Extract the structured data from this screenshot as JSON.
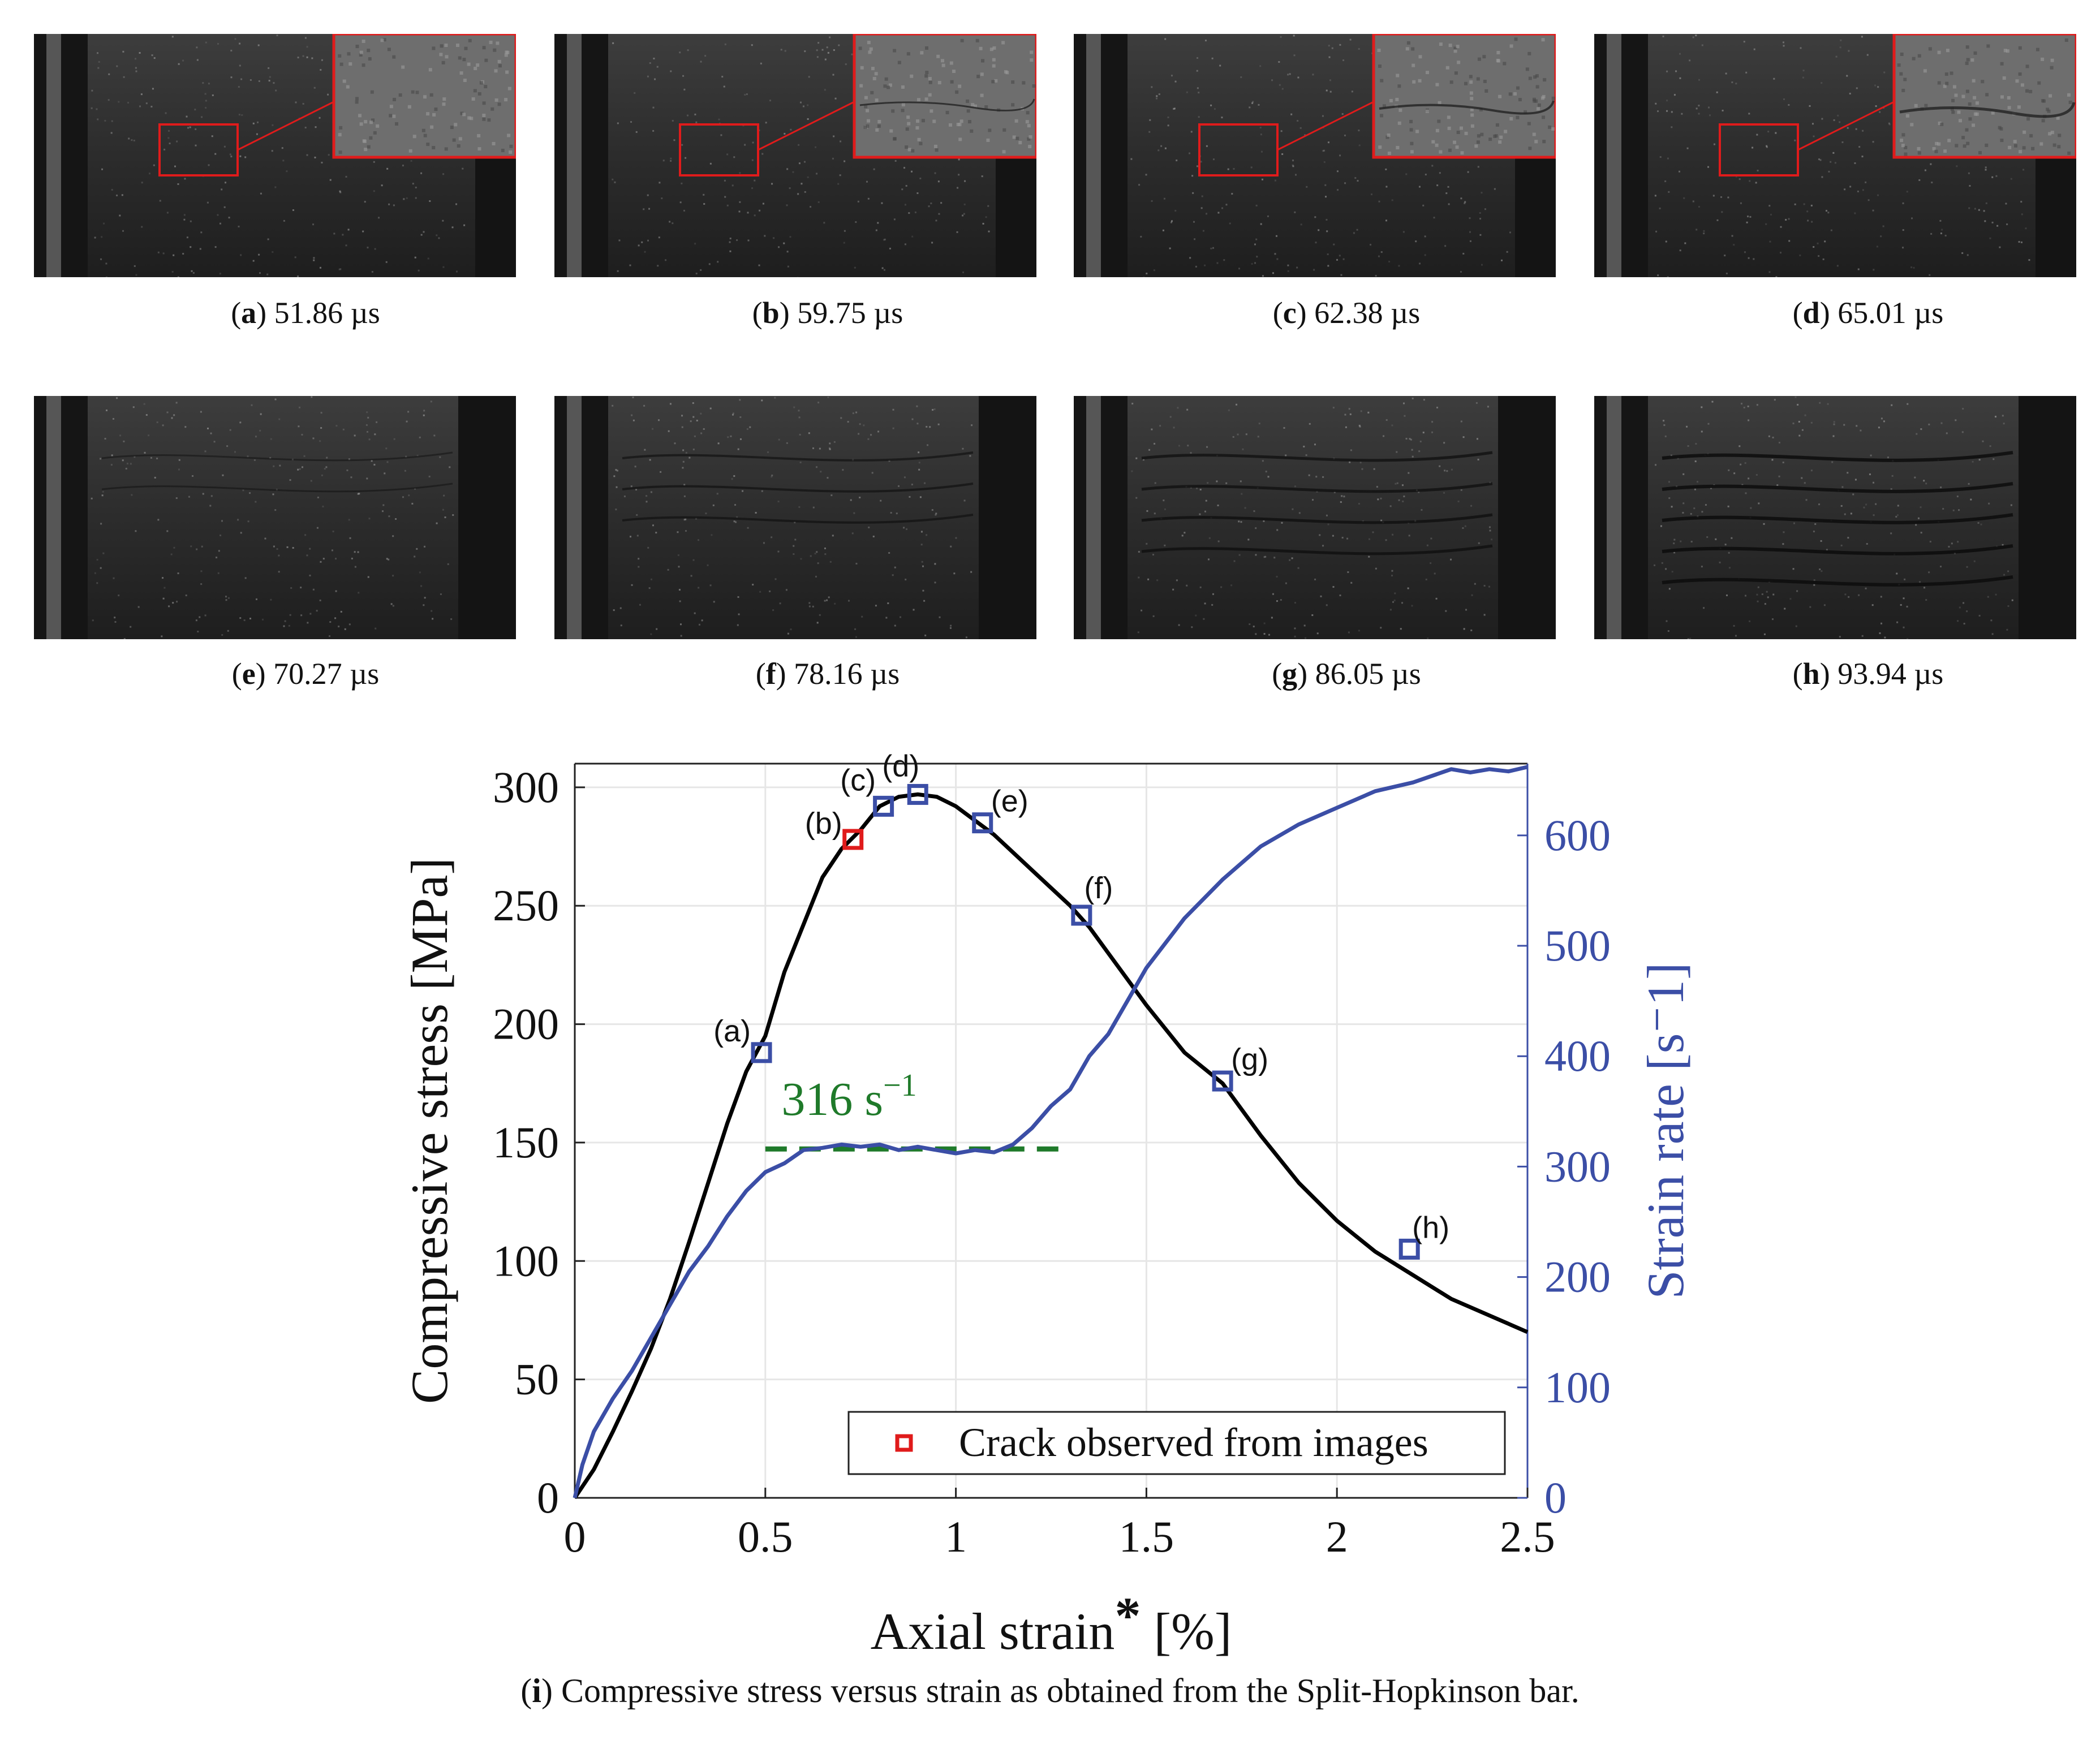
{
  "panels": [
    {
      "letter": "a",
      "time": "51.86 µs"
    },
    {
      "letter": "b",
      "time": "59.75 µs"
    },
    {
      "letter": "c",
      "time": "62.38 µs"
    },
    {
      "letter": "d",
      "time": "65.01 µs"
    },
    {
      "letter": "e",
      "time": "70.27 µs"
    },
    {
      "letter": "f",
      "time": "78.16 µs"
    },
    {
      "letter": "g",
      "time": "86.05 µs"
    },
    {
      "letter": "h",
      "time": "93.94 µs"
    }
  ],
  "figure_caption": {
    "letter": "i",
    "text": "Compressive stress versus strain as obtained from the Split-Hopkinson bar."
  },
  "colors": {
    "stress": "#000000",
    "rate": "#3b4ea6",
    "highlight": "#e01b1b",
    "plateau": "#1f7a2a",
    "grid": "#e6e6e6"
  },
  "chart_data": {
    "type": "line",
    "xlabel_main": "Axial strain",
    "xlabel_star": "*",
    "xlabel_unit": "[%]",
    "ylabel": "Compressive stress [MPa]",
    "y2label": "Strain rate [s⁻1]",
    "xlim": [
      0,
      2.5
    ],
    "ylim": [
      0,
      310
    ],
    "y2lim": [
      0,
      665
    ],
    "xticks": [
      0,
      0.5,
      1,
      1.5,
      2,
      2.5
    ],
    "xtick_labels": [
      "0",
      "0.5",
      "1",
      "1.5",
      "2",
      "2.5"
    ],
    "yticks": [
      0,
      50,
      100,
      150,
      200,
      250,
      300
    ],
    "ytick_labels": [
      "0",
      "50",
      "100",
      "150",
      "200",
      "250",
      "300"
    ],
    "y2ticks": [
      0,
      100,
      200,
      300,
      400,
      500,
      600
    ],
    "y2tick_labels": [
      "0",
      "100",
      "200",
      "300",
      "400",
      "500",
      "600"
    ],
    "grid": true,
    "series": [
      {
        "name": "Compressive stress",
        "axis": "left",
        "x": [
          0,
          0.05,
          0.1,
          0.15,
          0.2,
          0.25,
          0.3,
          0.35,
          0.4,
          0.45,
          0.5,
          0.55,
          0.6,
          0.65,
          0.7,
          0.75,
          0.8,
          0.85,
          0.9,
          0.95,
          1.0,
          1.1,
          1.2,
          1.3,
          1.35,
          1.4,
          1.5,
          1.6,
          1.7,
          1.8,
          1.9,
          2.0,
          2.1,
          2.2,
          2.3,
          2.4,
          2.5
        ],
        "values": [
          0,
          12,
          28,
          45,
          63,
          84,
          108,
          133,
          158,
          180,
          195,
          222,
          242,
          262,
          274,
          282,
          292,
          296,
          297,
          296,
          292,
          280,
          265,
          250,
          241,
          230,
          208,
          188,
          175,
          153,
          133,
          117,
          104,
          94,
          84,
          77,
          70
        ]
      },
      {
        "name": "Strain rate",
        "axis": "right",
        "x": [
          0,
          0.02,
          0.05,
          0.1,
          0.15,
          0.2,
          0.25,
          0.3,
          0.35,
          0.4,
          0.45,
          0.5,
          0.55,
          0.6,
          0.65,
          0.7,
          0.75,
          0.8,
          0.85,
          0.9,
          0.95,
          1.0,
          1.05,
          1.1,
          1.15,
          1.2,
          1.25,
          1.3,
          1.35,
          1.4,
          1.45,
          1.5,
          1.6,
          1.7,
          1.8,
          1.9,
          2.0,
          2.1,
          2.2,
          2.3,
          2.35,
          2.4,
          2.45,
          2.5
        ],
        "values": [
          0,
          30,
          60,
          90,
          115,
          145,
          175,
          205,
          228,
          255,
          278,
          295,
          303,
          315,
          317,
          320,
          318,
          320,
          315,
          318,
          315,
          312,
          315,
          313,
          320,
          335,
          355,
          370,
          400,
          420,
          450,
          480,
          525,
          560,
          590,
          610,
          625,
          640,
          648,
          660,
          657,
          660,
          658,
          662
        ]
      }
    ],
    "markers": [
      {
        "label": "(a)",
        "x": 0.49,
        "y": 188,
        "highlight": false
      },
      {
        "label": "(b)",
        "x": 0.73,
        "y": 278,
        "highlight": true
      },
      {
        "label": "(c)",
        "x": 0.81,
        "y": 292,
        "highlight": false
      },
      {
        "label": "(d)",
        "x": 0.9,
        "y": 297,
        "highlight": false
      },
      {
        "label": "(e)",
        "x": 1.07,
        "y": 285,
        "highlight": false
      },
      {
        "label": "(f)",
        "x": 1.33,
        "y": 246,
        "highlight": false
      },
      {
        "label": "(g)",
        "x": 1.7,
        "y": 176,
        "highlight": false
      },
      {
        "label": "(h)",
        "x": 2.19,
        "y": 105,
        "highlight": false
      }
    ],
    "plateau": {
      "x_start": 0.5,
      "x_end": 1.3,
      "rate": 316,
      "label_value": "316",
      "label_unit": "s",
      "label_exp": "−1"
    },
    "legend": {
      "entry": "Crack observed from images",
      "position": "bottom-right"
    }
  }
}
